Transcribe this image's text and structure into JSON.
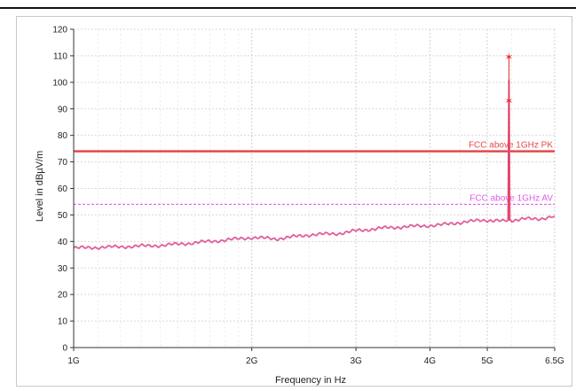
{
  "chart_data": {
    "type": "line",
    "xlabel": "Frequency in Hz",
    "ylabel": "Level in dBµV/m",
    "x_scale": "log",
    "xlim": [
      1000000000,
      6500000000
    ],
    "ylim": [
      0,
      120
    ],
    "x_ticks": [
      {
        "value": 1000000000,
        "label": "1G"
      },
      {
        "value": 2000000000,
        "label": "2G"
      },
      {
        "value": 3000000000,
        "label": "3G"
      },
      {
        "value": 4000000000,
        "label": "4G"
      },
      {
        "value": 5000000000,
        "label": "5G"
      },
      {
        "value": 6500000000,
        "label": "6.5G"
      }
    ],
    "y_ticks": [
      0,
      10,
      20,
      30,
      40,
      50,
      60,
      70,
      80,
      90,
      100,
      110,
      120
    ],
    "grid": true,
    "limit_lines": [
      {
        "name": "FCC above 1GHz PK",
        "y": 74,
        "color": "#e24a4a",
        "style": "solid"
      },
      {
        "name": "FCC above 1GHz AV",
        "y": 54,
        "color": "#e060e8",
        "style": "dashed"
      }
    ],
    "series": [
      {
        "color": "#e0609a",
        "x": [
          1000000000,
          1200000000,
          1400000000,
          1600000000,
          1800000000,
          2000000000,
          2200000000,
          2500000000,
          2800000000,
          3000000000,
          3300000000,
          3600000000,
          4000000000,
          4300000000,
          4600000000,
          5000000000,
          5200000000,
          5350000000,
          5420000000,
          5440000000,
          5460000000,
          5500000000,
          5800000000,
          6100000000,
          6500000000
        ],
        "y": [
          37.5,
          38,
          38.5,
          39.5,
          40.5,
          41.5,
          41,
          42.5,
          43,
          44,
          45,
          45.5,
          46,
          46.5,
          47.5,
          48,
          48,
          47.5,
          48,
          101,
          48,
          48,
          48.5,
          48.5,
          49.5
        ]
      }
    ],
    "markers": [
      {
        "x": 5440000000,
        "y": 109.5,
        "color": "#e83030"
      },
      {
        "x": 5440000000,
        "y": 93,
        "color": "#e83030"
      }
    ]
  }
}
